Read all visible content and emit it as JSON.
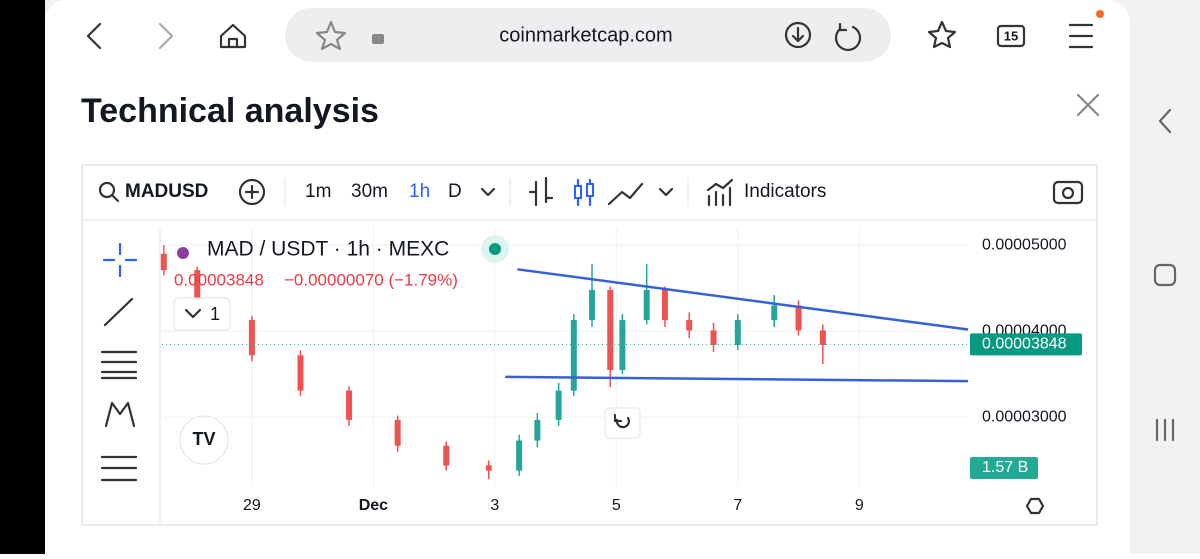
{
  "browser": {
    "url": "coinmarketcap.com",
    "tab_count": "15"
  },
  "panel": {
    "title": "Technical analysis"
  },
  "toolbar": {
    "symbol": "MADUSD",
    "intervals": [
      "1m",
      "30m",
      "1h",
      "D"
    ],
    "indicators": "Indicators"
  },
  "legend": {
    "pair": "MAD / USDT · 1h · MEXC",
    "price": "0.00003848",
    "change": "−0.00000070 (−1.79%)",
    "collapse_count": "1"
  },
  "chart_data": {
    "type": "candlestick",
    "x": [
      27.55,
      28.1,
      29.0,
      29.8,
      30.6,
      31.4,
      32.2,
      32.9,
      33.4,
      33.7,
      34.05,
      34.3,
      34.6,
      34.9,
      35.1,
      35.5,
      35.8,
      36.2,
      36.6,
      37.0,
      37.6,
      38.0,
      38.4
    ],
    "open": [
      4.9e-05,
      4.71e-05,
      4.13e-05,
      3.72e-05,
      3.31e-05,
      2.97e-05,
      2.67e-05,
      2.44e-05,
      2.38e-05,
      2.73e-05,
      2.97e-05,
      3.31e-05,
      4.13e-05,
      4.48e-05,
      3.55e-05,
      4.13e-05,
      4.48e-05,
      4.13e-05,
      4.01e-05,
      3.84e-05,
      4.13e-05,
      4.3e-05,
      4.01e-05
    ],
    "high": [
      5e-05,
      4.75e-05,
      4.18e-05,
      3.78e-05,
      3.36e-05,
      3.02e-05,
      2.72e-05,
      2.5e-05,
      2.8e-05,
      3.05e-05,
      3.4e-05,
      4.2e-05,
      4.78e-05,
      4.52e-05,
      4.2e-05,
      4.78e-05,
      4.52e-05,
      4.22e-05,
      4.1e-05,
      4.2e-05,
      4.42e-05,
      4.36e-05,
      4.08e-05
    ],
    "low": [
      4.65e-05,
      4.05e-05,
      3.65e-05,
      3.25e-05,
      2.9e-05,
      2.6e-05,
      2.38e-05,
      2.28e-05,
      2.32e-05,
      2.65e-05,
      2.9e-05,
      3.25e-05,
      4.05e-05,
      3.35e-05,
      3.5e-05,
      4.08e-05,
      4.05e-05,
      3.92e-05,
      3.76e-05,
      3.78e-05,
      4.05e-05,
      3.95e-05,
      3.62e-05
    ],
    "close": [
      4.71e-05,
      4.13e-05,
      3.72e-05,
      3.31e-05,
      2.97e-05,
      2.67e-05,
      2.44e-05,
      2.38e-05,
      2.73e-05,
      2.97e-05,
      3.31e-05,
      4.13e-05,
      4.48e-05,
      3.55e-05,
      4.13e-05,
      4.48e-05,
      4.13e-05,
      4.01e-05,
      3.84e-05,
      4.13e-05,
      4.3e-05,
      4.01e-05,
      3.84e-05
    ],
    "up_color": "#26a69a",
    "down_color": "#ef5350",
    "xlim": [
      27.52,
      40.79
    ],
    "xticks": [
      29,
      {
        "value": 31,
        "label": "Dec"
      },
      {
        "value": 33,
        "label": "3"
      },
      {
        "value": 35,
        "label": "5"
      },
      {
        "value": 37,
        "label": "7"
      },
      {
        "value": 39,
        "label": "9"
      }
    ],
    "ylim": [
      2.19e-05,
      5.2e-05
    ],
    "yticks": [
      {
        "value": 3e-05,
        "label": "0.00003000"
      },
      {
        "value": 4e-05,
        "label": "0.00004000"
      },
      {
        "value": 5e-05,
        "label": "0.00005000"
      }
    ],
    "grid": true,
    "last_price": 3.848e-05,
    "volume_label": "1.57 B",
    "trendlines": [
      {
        "color": "#3461d9",
        "x": [
          33.37,
          40.79
        ],
        "y": [
          4.72e-05,
          4.02e-05
        ]
      },
      {
        "color": "#3461d9",
        "x": [
          33.17,
          40.79
        ],
        "y": [
          3.47e-05,
          3.42e-05
        ]
      }
    ]
  }
}
